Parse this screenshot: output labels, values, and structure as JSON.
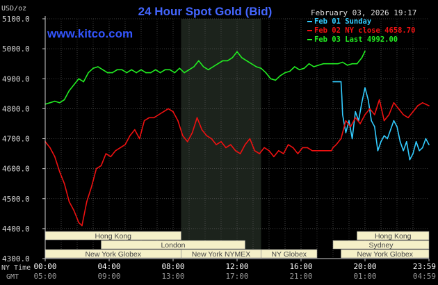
{
  "chart_data": {
    "type": "line",
    "title": "24 Hour Spot Gold (Bid)",
    "watermark": "www.kitco.com",
    "unit_label": "USD/oz",
    "timestamp": "February 03, 2026 19:17",
    "ylim": [
      4300,
      5100
    ],
    "y_ticks": [
      "5100.0",
      "5000.0",
      "4900.0",
      "4800.0",
      "4700.0",
      "4600.0",
      "4500.0",
      "4400.0",
      "4300.0"
    ],
    "y_tick_values": [
      5100,
      5000,
      4900,
      4800,
      4700,
      4600,
      4500,
      4400,
      4300
    ],
    "xlim": [
      0,
      24
    ],
    "x_tick_hours": [
      0,
      4,
      8,
      12,
      16,
      20,
      24
    ],
    "ny_time_label": "NY Time",
    "gmt_label": "GMT",
    "ny_times": [
      "00:00",
      "04:00",
      "08:00",
      "12:00",
      "16:00",
      "20:00",
      "23:59"
    ],
    "gmt_times": [
      "05:00",
      "09:00",
      "13:00",
      "17:00",
      "21:00",
      "01:00",
      "04:59"
    ],
    "shaded_hours": [
      8.5,
      13.5
    ],
    "colors": {
      "feb01": "#33ccff",
      "feb02": "#ee1111",
      "feb03": "#22ee22",
      "title": "#4466ff",
      "watermark": "#3355ff",
      "grid": "#555555",
      "axis": "#cccccc",
      "session_fill": "#f5f0c8",
      "session_text": "#444444",
      "shade": "#1c231c"
    },
    "legend": [
      {
        "label": "Feb 01 Sunday",
        "color": "#33ccff"
      },
      {
        "label": "Feb 02 NY close 4658.70",
        "color": "#ee1111"
      },
      {
        "label": "Feb 03 Last 4992.00",
        "color": "#22ee22"
      }
    ],
    "sessions": [
      {
        "label": "Hong Kong",
        "start": 0,
        "end": 8.5,
        "row": 0,
        "align": "center"
      },
      {
        "label": "Hong Kong",
        "start": 19.5,
        "end": 24,
        "row": 0,
        "align": "right"
      },
      {
        "label": "London",
        "start": 3.5,
        "end": 12.5,
        "row": 1,
        "align": "center"
      },
      {
        "label": "Sydney",
        "start": 18,
        "end": 24,
        "row": 1,
        "align": "center"
      },
      {
        "label": "New York Globex",
        "start": 0,
        "end": 8.5,
        "row": 2,
        "align": "center"
      },
      {
        "label": "New York NYMEX",
        "start": 8.5,
        "end": 13.5,
        "row": 2,
        "align": "center"
      },
      {
        "label": "NY Globex",
        "start": 13.5,
        "end": 17,
        "row": 2,
        "align": "center"
      },
      {
        "label": "New York Globex",
        "start": 18.5,
        "end": 24,
        "row": 2,
        "align": "center"
      }
    ],
    "series": [
      {
        "name": "Feb 01 Sunday",
        "color": "#33ccff",
        "x": [
          18,
          18.5,
          18.55,
          18.6,
          18.8,
          19,
          19.2,
          19.4,
          19.6,
          19.8,
          20,
          20.2,
          20.4,
          20.6,
          20.8,
          21,
          21.2,
          21.4,
          21.6,
          21.8,
          22,
          22.2,
          22.4,
          22.6,
          22.8,
          23,
          23.2,
          23.4,
          23.6,
          23.8,
          24
        ],
        "y": [
          4890,
          4890,
          4840,
          4780,
          4720,
          4760,
          4700,
          4790,
          4760,
          4820,
          4870,
          4830,
          4760,
          4740,
          4660,
          4690,
          4710,
          4700,
          4730,
          4760,
          4740,
          4690,
          4660,
          4690,
          4630,
          4650,
          4690,
          4660,
          4670,
          4700,
          4680
        ]
      },
      {
        "name": "Feb 02 NY close 4658.70",
        "color": "#ee1111",
        "x": [
          0,
          0.3,
          0.6,
          0.9,
          1.2,
          1.5,
          1.8,
          2.1,
          2.3,
          2.6,
          2.9,
          3.2,
          3.5,
          3.8,
          4.1,
          4.4,
          4.7,
          5,
          5.3,
          5.6,
          5.9,
          6.2,
          6.5,
          6.8,
          7.1,
          7.4,
          7.7,
          8,
          8.3,
          8.6,
          8.9,
          9.2,
          9.5,
          9.8,
          10.1,
          10.4,
          10.7,
          11,
          11.3,
          11.6,
          11.9,
          12.2,
          12.5,
          12.8,
          13.1,
          13.4,
          13.7,
          14,
          14.3,
          14.6,
          14.9,
          15.2,
          15.5,
          15.8,
          16.1,
          16.4,
          16.7,
          17,
          17.3,
          17.6,
          17.9,
          18,
          18.2,
          18.5,
          18.8,
          19.1,
          19.4,
          19.7,
          20,
          20.3,
          20.6,
          20.9,
          21.2,
          21.5,
          21.8,
          22.1,
          22.4,
          22.7,
          23,
          23.3,
          23.6,
          24
        ],
        "y": [
          4690,
          4670,
          4640,
          4590,
          4550,
          4490,
          4460,
          4420,
          4410,
          4490,
          4540,
          4600,
          4610,
          4650,
          4640,
          4660,
          4670,
          4680,
          4710,
          4730,
          4700,
          4760,
          4770,
          4770,
          4780,
          4790,
          4800,
          4790,
          4760,
          4710,
          4690,
          4720,
          4770,
          4730,
          4710,
          4700,
          4680,
          4690,
          4670,
          4680,
          4660,
          4650,
          4680,
          4700,
          4660,
          4650,
          4670,
          4660,
          4640,
          4660,
          4650,
          4680,
          4670,
          4650,
          4670,
          4670,
          4660,
          4660,
          4660,
          4660,
          4660,
          4670,
          4680,
          4700,
          4760,
          4740,
          4770,
          4750,
          4780,
          4800,
          4780,
          4830,
          4760,
          4780,
          4820,
          4800,
          4780,
          4770,
          4790,
          4810,
          4820,
          4810
        ]
      },
      {
        "name": "Feb 03 Last 4992.00",
        "color": "#22ee22",
        "x": [
          0,
          0.3,
          0.6,
          0.9,
          1.2,
          1.5,
          1.8,
          2.1,
          2.4,
          2.7,
          3,
          3.3,
          3.6,
          3.9,
          4.2,
          4.5,
          4.8,
          5.1,
          5.4,
          5.7,
          6,
          6.3,
          6.6,
          6.9,
          7.2,
          7.5,
          7.8,
          8.1,
          8.4,
          8.7,
          9,
          9.3,
          9.6,
          9.9,
          10.2,
          10.5,
          10.8,
          11.1,
          11.4,
          11.7,
          12,
          12.3,
          12.6,
          12.9,
          13.2,
          13.5,
          13.8,
          14.1,
          14.4,
          14.7,
          15,
          15.3,
          15.6,
          15.9,
          16.2,
          16.5,
          16.8,
          17.1,
          17.4,
          17.7,
          18,
          18.3,
          18.6,
          18.9,
          19.2,
          19.5,
          19.8,
          20
        ],
        "y": [
          4815,
          4820,
          4825,
          4820,
          4830,
          4860,
          4880,
          4900,
          4890,
          4920,
          4935,
          4940,
          4930,
          4920,
          4920,
          4930,
          4930,
          4920,
          4930,
          4920,
          4930,
          4920,
          4920,
          4930,
          4920,
          4930,
          4930,
          4920,
          4935,
          4920,
          4930,
          4940,
          4960,
          4940,
          4930,
          4940,
          4950,
          4960,
          4960,
          4970,
          4990,
          4970,
          4960,
          4950,
          4940,
          4935,
          4920,
          4900,
          4895,
          4910,
          4920,
          4925,
          4940,
          4930,
          4935,
          4950,
          4940,
          4945,
          4950,
          4950,
          4950,
          4950,
          4955,
          4945,
          4950,
          4950,
          4970,
          4992
        ]
      }
    ]
  }
}
